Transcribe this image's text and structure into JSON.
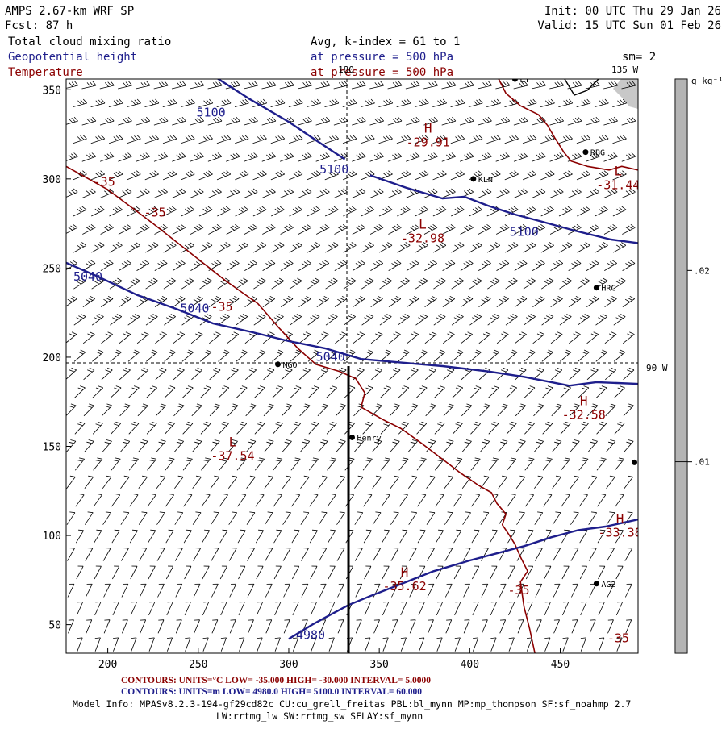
{
  "header": {
    "model": "AMPS 2.67-km WRF SP",
    "forecast": "Fcst:    87 h",
    "init": "Init: 00 UTC Thu 29 Jan 26",
    "valid": "Valid: 15 UTC Sun 01 Feb 26",
    "field1": "Total cloud mixing ratio",
    "field2": "Geopotential height",
    "field3": "Temperature",
    "avg": "Avg, k-index =  61 to   1",
    "pressure1": "at pressure =  500 hPa",
    "pressure2": "at pressure =  500 hPa",
    "smoothing": "sm= 2"
  },
  "colorbar": {
    "unit": "g kg⁻¹",
    "levels": [
      {
        "value": 0.02,
        "label": ".02",
        "color": "#b4b4b4"
      },
      {
        "value": 0.01,
        "label": ".01",
        "color": "#b4b4b4"
      },
      {
        "value": 0,
        "label": "",
        "color": "#ffffff"
      }
    ]
  },
  "chart_data": {
    "type": "contour",
    "xlim": [
      177,
      493
    ],
    "ylim": [
      34,
      356
    ],
    "xticks": [
      200,
      250,
      300,
      350,
      400,
      450
    ],
    "yticks": [
      50,
      100,
      150,
      200,
      250,
      300,
      350
    ],
    "longitude_labels": [
      {
        "label": "180",
        "x": 333,
        "y": 356
      },
      {
        "label": "135 W",
        "x": 487,
        "y": 356
      },
      {
        "label": "90 W",
        "x": 493,
        "y": 195
      }
    ],
    "cross_section": {
      "x": 333,
      "y_from": 34,
      "y_to": 195
    },
    "height_contours": {
      "units": "m",
      "low": 4980.0,
      "high": 5100.0,
      "interval": 60.0,
      "color": "#1e1e8c",
      "lines": [
        {
          "level": 5100,
          "points": [
            [
              255,
              360
            ],
            [
              278,
              345
            ],
            [
              300,
              332
            ],
            [
              316,
              321
            ],
            [
              331,
              311
            ]
          ]
        },
        {
          "level": 5100,
          "points": [
            [
              345,
              302
            ],
            [
              365,
              295
            ],
            [
              385,
              289
            ],
            [
              397,
              290
            ],
            [
              410,
              285
            ],
            [
              425,
              280
            ],
            [
              440,
              276
            ],
            [
              458,
              271
            ],
            [
              478,
              266
            ],
            [
              493,
              264
            ]
          ]
        },
        {
          "level": 5040,
          "points": [
            [
              177,
              253
            ],
            [
              195,
              245
            ],
            [
              216,
              235
            ],
            [
              238,
              227
            ],
            [
              258,
              219
            ],
            [
              280,
              214
            ],
            [
              300,
              209
            ],
            [
              320,
              205
            ],
            [
              340,
              199
            ],
            [
              362,
              197
            ],
            [
              385,
              195
            ],
            [
              410,
              192
            ],
            [
              430,
              189
            ],
            [
              445,
              186
            ],
            [
              455,
              184
            ],
            [
              470,
              186
            ],
            [
              493,
              185
            ]
          ]
        },
        {
          "level": 4980,
          "points": [
            [
              300,
              42
            ],
            [
              313,
              50
            ],
            [
              322,
              55
            ],
            [
              333,
              61
            ],
            [
              345,
              66
            ],
            [
              360,
              72
            ],
            [
              380,
              80
            ],
            [
              400,
              86
            ],
            [
              415,
              90
            ],
            [
              430,
              94
            ],
            [
              445,
              99
            ],
            [
              460,
              103
            ],
            [
              475,
              105
            ],
            [
              493,
              109
            ]
          ]
        }
      ],
      "labels": [
        {
          "text": "5100",
          "x": 249,
          "y": 335
        },
        {
          "text": "5100",
          "x": 317,
          "y": 303
        },
        {
          "text": "5100",
          "x": 422,
          "y": 268
        },
        {
          "text": "5040",
          "x": 181,
          "y": 243
        },
        {
          "text": "5040",
          "x": 240,
          "y": 225
        },
        {
          "text": "5040",
          "x": 315,
          "y": 198
        },
        {
          "text": "4980",
          "x": 304,
          "y": 42
        }
      ]
    },
    "temperature_contours": {
      "units": "°C",
      "low": -35.0,
      "high": -30.0,
      "interval": 5.0,
      "color": "#8b0000",
      "lines": [
        {
          "level": -35,
          "points": [
            [
              177,
              307
            ],
            [
              200,
              294
            ],
            [
              225,
              275
            ],
            [
              245,
              259
            ],
            [
              265,
              243
            ],
            [
              283,
              230
            ],
            [
              295,
              216
            ],
            [
              305,
              205
            ],
            [
              315,
              196
            ],
            [
              328,
              192
            ],
            [
              337,
              188
            ],
            [
              342,
              180
            ],
            [
              340,
              172
            ],
            [
              352,
              165
            ],
            [
              362,
              160
            ],
            [
              373,
              152
            ],
            [
              386,
              142
            ],
            [
              395,
              135
            ],
            [
              405,
              128
            ],
            [
              412,
              124
            ],
            [
              415,
              118
            ],
            [
              420,
              112
            ],
            [
              418,
              106
            ],
            [
              422,
              100
            ],
            [
              425,
              95
            ],
            [
              428,
              88
            ],
            [
              432,
              80
            ],
            [
              428,
              74
            ],
            [
              430,
              60
            ],
            [
              433,
              48
            ],
            [
              436,
              34
            ]
          ]
        },
        {
          "level": -35,
          "points": [
            [
              416,
              356
            ],
            [
              420,
              348
            ],
            [
              428,
              341
            ],
            [
              438,
              336
            ],
            [
              443,
              330
            ],
            [
              447,
              323
            ],
            [
              452,
              315
            ],
            [
              456,
              310
            ],
            [
              465,
              307
            ],
            [
              477,
              305
            ],
            [
              484,
              307
            ],
            [
              493,
              305
            ]
          ]
        }
      ],
      "labels": [
        {
          "text": "-35",
          "x": 192,
          "y": 296
        },
        {
          "text": "-35",
          "x": 220,
          "y": 279
        },
        {
          "text": "-35",
          "x": 257,
          "y": 226
        },
        {
          "text": "-35",
          "x": 421,
          "y": 67
        },
        {
          "text": "-35",
          "x": 476,
          "y": 40
        }
      ]
    },
    "extrema": [
      {
        "type": "H",
        "value": "-29.91",
        "x": 377,
        "y": 326,
        "color": "#8b0000"
      },
      {
        "type": "L",
        "value": "-31.44",
        "x": 482,
        "y": 302,
        "color": "#8b0000"
      },
      {
        "type": "L",
        "value": "-32.98",
        "x": 374,
        "y": 272,
        "color": "#8b0000"
      },
      {
        "type": "H",
        "value": "-32.58",
        "x": 463,
        "y": 173,
        "color": "#8b0000"
      },
      {
        "type": "L",
        "value": "-37.54",
        "x": 269,
        "y": 150,
        "color": "#8b0000"
      },
      {
        "type": "H",
        "value": "-33.38",
        "x": 483,
        "y": 107,
        "color": "#8b0000"
      },
      {
        "type": "H",
        "value": "-35.62",
        "x": 364,
        "y": 77,
        "color": "#8b0000"
      }
    ],
    "stations": [
      {
        "name": "LTT",
        "x": 425,
        "y": 356
      },
      {
        "name": "RBG",
        "x": 464,
        "y": 315
      },
      {
        "name": "KLN",
        "x": 402,
        "y": 300
      },
      {
        "name": "HRC",
        "x": 470,
        "y": 239
      },
      {
        "name": "NGO",
        "x": 294,
        "y": 196
      },
      {
        "name": "Henry",
        "x": 335,
        "y": 155
      },
      {
        "name": "AG2",
        "x": 470,
        "y": 73
      },
      {
        "name": "",
        "x": 491,
        "y": 141
      }
    ]
  },
  "footer": {
    "temp_contours": "CONTOURS:  UNITS=°C  LOW=  -35.000       HIGH=  -30.000       INTERVAL=   5.0000",
    "height_contours": "CONTOURS:  UNITS=m  LOW=  4980.0        HIGH=  5100.0        INTERVAL=   60.000",
    "model_info": "Model Info: MPASv8.2.3-194-gf29cd82c CU:cu_grell_freitas PBL:bl_mynn MP:mp_thompson SF:sf_noahmp 2.7",
    "model_info2": "LW:rrtmg_lw SW:rrtmg_sw SFLAY:sf_mynn"
  }
}
